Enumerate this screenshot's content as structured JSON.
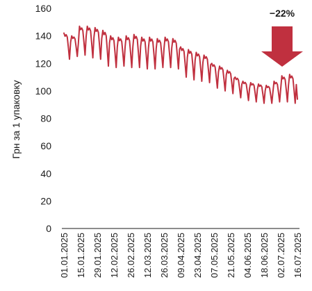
{
  "chart_data": {
    "type": "line",
    "ylabel": "Грн за 1 упаковку",
    "xlabel": "",
    "ylim": [
      0,
      160
    ],
    "yticks": [
      "0",
      "20",
      "40",
      "60",
      "80",
      "100",
      "120",
      "140",
      "160"
    ],
    "xticks": [
      "01.01.2025",
      "15.01.2025",
      "29.01.2025",
      "12.02.2025",
      "26.02.2025",
      "12.03.2025",
      "26.03.2025",
      "09.04.2025",
      "23.04.2025",
      "07.05.2025",
      "21.05.2025",
      "04.06.2025",
      "18.06.2025",
      "02.07.2025",
      "16.07.2025"
    ],
    "x_start": "01.01.2025",
    "x_end": "20.07.2025",
    "line_color": "#c0303f",
    "arrow_color": "#c0303f",
    "annotation": "−22%",
    "grid": false,
    "series": [
      {
        "weekly_high": [
          142,
          140,
          147,
          147,
          146,
          144,
          140,
          139,
          140,
          141,
          139,
          139,
          138,
          139,
          138,
          132,
          130,
          128,
          126,
          120,
          118,
          115,
          110,
          107,
          106,
          105,
          104,
          107,
          111,
          112
        ],
        "weekly_low": [
          123,
          125,
          126,
          124,
          123,
          118,
          117,
          118,
          117,
          117,
          116,
          116,
          117,
          117,
          116,
          110,
          108,
          107,
          106,
          102,
          100,
          98,
          95,
          93,
          92,
          91,
          91,
          92,
          92,
          91
        ],
        "last_value": 94
      }
    ]
  }
}
